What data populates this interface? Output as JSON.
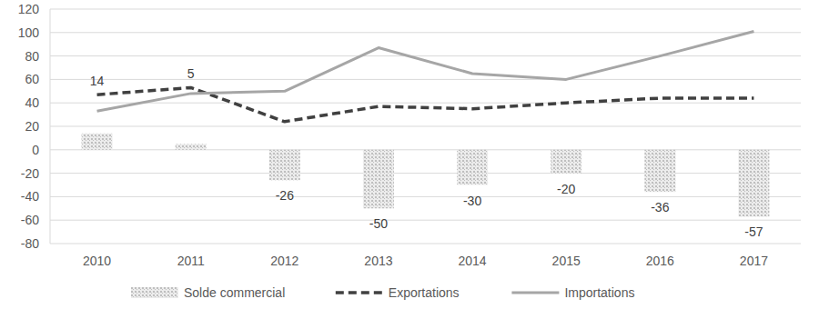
{
  "chart_data": {
    "type": "bar",
    "categories": [
      "2010",
      "2011",
      "2012",
      "2013",
      "2014",
      "2015",
      "2016",
      "2017"
    ],
    "ylim": [
      -80,
      120
    ],
    "yticks": [
      -80,
      -60,
      -40,
      -20,
      0,
      20,
      40,
      60,
      80,
      100,
      120
    ],
    "grid": true,
    "legend": "bottom",
    "series": [
      {
        "name": "Solde commercial",
        "type": "bar",
        "color": "#bfbfbf",
        "data_labels": true,
        "values": [
          14,
          5,
          -26,
          -50,
          -30,
          -20,
          -36,
          -57
        ]
      },
      {
        "name": "Exportations",
        "type": "line",
        "color": "#404040",
        "line_style": "dashed",
        "values": [
          47,
          53,
          24,
          37,
          35,
          40,
          44,
          44
        ]
      },
      {
        "name": "Importations",
        "type": "line",
        "color": "#a6a6a6",
        "line_style": "solid",
        "values": [
          33,
          48,
          50,
          87,
          65,
          60,
          80,
          101
        ]
      }
    ]
  }
}
